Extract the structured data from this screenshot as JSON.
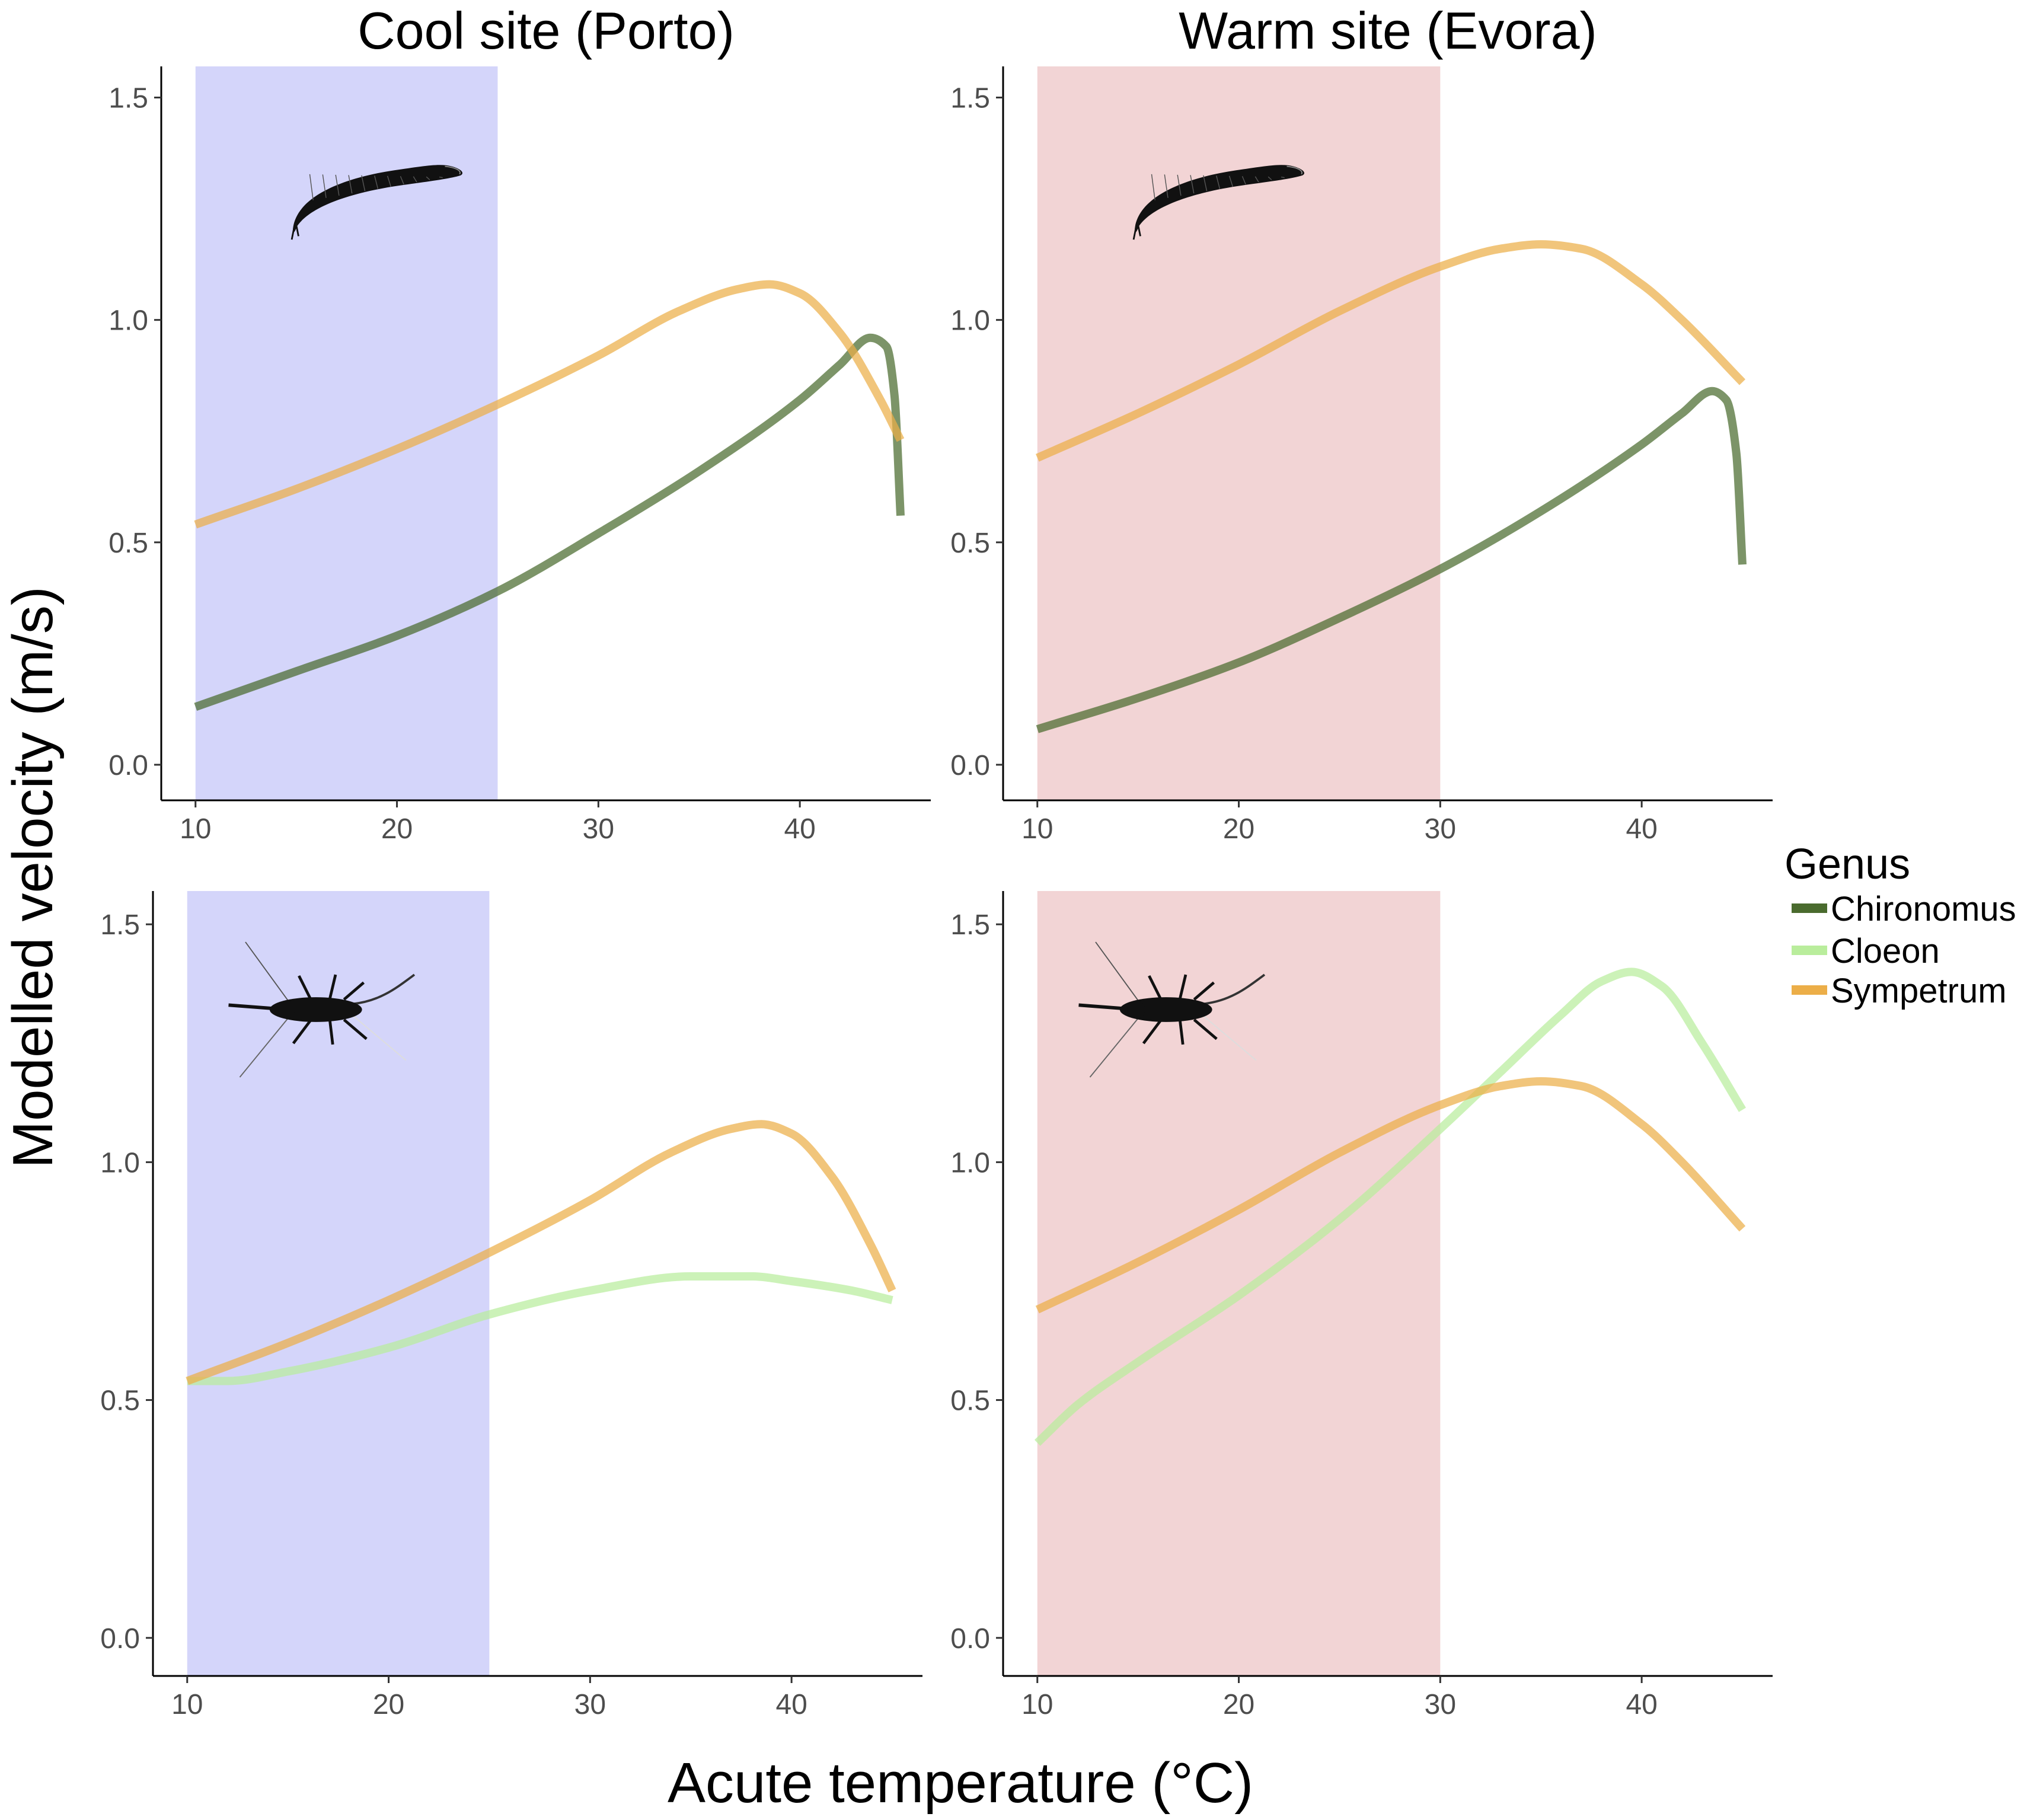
{
  "figure": {
    "xlabel": "Acute temperature (°C)",
    "ylabel": "Modelled velocity (m/s)",
    "legend": {
      "title": "Genus",
      "placement": "right",
      "items": [
        {
          "label": "Chironomus",
          "color": "#4a6b2e"
        },
        {
          "label": "Cloeon",
          "color": "#b9ed9c"
        },
        {
          "label": "Sympetrum",
          "color": "#ecae48"
        }
      ]
    },
    "icons": [
      "chironomus-larva-icon",
      "cloeon-nymph-icon"
    ]
  },
  "chart_data": [
    {
      "type": "line",
      "title": "Cool site (Porto)",
      "xlim": [
        8.3,
        46.5
      ],
      "ylim": [
        -0.08,
        1.57
      ],
      "xticks": [
        "10",
        "20",
        "30",
        "40"
      ],
      "yticks": [
        "0.0",
        "0.5",
        "1.0",
        "1.5"
      ],
      "shaded_range": {
        "x": [
          10,
          25
        ],
        "color": "#d4d5fa"
      },
      "series": [
        {
          "name": "Chironomus",
          "color": "#4a6b2e",
          "x": [
            10,
            15,
            20,
            25,
            30,
            35,
            40,
            42,
            43.5,
            44.3,
            44.7,
            45
          ],
          "y": [
            0.13,
            0.21,
            0.29,
            0.39,
            0.52,
            0.66,
            0.82,
            0.9,
            0.96,
            0.94,
            0.83,
            0.56
          ]
        },
        {
          "name": "Sympetrum",
          "color": "#ecae48",
          "x": [
            10,
            15,
            20,
            25,
            30,
            34,
            37,
            38.5,
            40,
            42,
            44,
            45
          ],
          "y": [
            0.54,
            0.62,
            0.71,
            0.81,
            0.92,
            1.02,
            1.07,
            1.08,
            1.06,
            0.97,
            0.82,
            0.73
          ]
        }
      ]
    },
    {
      "type": "line",
      "title": "Warm site (Evora)",
      "xlim": [
        8.3,
        46.5
      ],
      "ylim": [
        -0.08,
        1.57
      ],
      "xticks": [
        "10",
        "20",
        "30",
        "40"
      ],
      "yticks": [
        "0.0",
        "0.5",
        "1.0",
        "1.5"
      ],
      "shaded_range": {
        "x": [
          10,
          30
        ],
        "color": "#f2d4d5"
      },
      "series": [
        {
          "name": "Chironomus",
          "color": "#4a6b2e",
          "x": [
            10,
            15,
            20,
            25,
            30,
            35,
            40,
            42,
            43.5,
            44.2,
            44.7,
            45
          ],
          "y": [
            0.08,
            0.15,
            0.23,
            0.33,
            0.44,
            0.57,
            0.72,
            0.79,
            0.84,
            0.82,
            0.7,
            0.45
          ]
        },
        {
          "name": "Sympetrum",
          "color": "#ecae48",
          "x": [
            10,
            15,
            20,
            25,
            30,
            33,
            35,
            37,
            40,
            42,
            45
          ],
          "y": [
            0.69,
            0.79,
            0.9,
            1.02,
            1.12,
            1.16,
            1.17,
            1.16,
            1.08,
            1.0,
            0.86
          ]
        }
      ]
    },
    {
      "type": "line",
      "title": "",
      "xlim": [
        8.3,
        46.5
      ],
      "ylim": [
        -0.08,
        1.57
      ],
      "xticks": [
        "10",
        "20",
        "30",
        "40"
      ],
      "yticks": [
        "0.0",
        "0.5",
        "1.0",
        "1.5"
      ],
      "shaded_range": {
        "x": [
          10,
          25
        ],
        "color": "#d4d5fa"
      },
      "series": [
        {
          "name": "Cloeon",
          "color": "#b9ed9c",
          "x": [
            10,
            12,
            15,
            20,
            25,
            30,
            35,
            38,
            40,
            43,
            45
          ],
          "y": [
            0.54,
            0.54,
            0.56,
            0.61,
            0.68,
            0.73,
            0.76,
            0.76,
            0.75,
            0.73,
            0.71
          ]
        },
        {
          "name": "Sympetrum",
          "color": "#ecae48",
          "x": [
            10,
            15,
            20,
            25,
            30,
            34,
            37,
            38.5,
            40,
            42,
            44,
            45
          ],
          "y": [
            0.54,
            0.62,
            0.71,
            0.81,
            0.92,
            1.02,
            1.07,
            1.08,
            1.06,
            0.97,
            0.82,
            0.73
          ]
        }
      ]
    },
    {
      "type": "line",
      "title": "",
      "xlim": [
        8.3,
        46.5
      ],
      "ylim": [
        -0.08,
        1.57
      ],
      "xticks": [
        "10",
        "20",
        "30",
        "40"
      ],
      "yticks": [
        "0.0",
        "0.5",
        "1.0",
        "1.5"
      ],
      "shaded_range": {
        "x": [
          10,
          30
        ],
        "color": "#f2d4d5"
      },
      "series": [
        {
          "name": "Cloeon",
          "color": "#b9ed9c",
          "x": [
            10,
            12,
            15,
            20,
            25,
            30,
            33,
            36,
            38,
            39.5,
            41,
            43,
            45
          ],
          "y": [
            0.41,
            0.49,
            0.58,
            0.72,
            0.88,
            1.07,
            1.19,
            1.31,
            1.38,
            1.4,
            1.37,
            1.25,
            1.11
          ]
        },
        {
          "name": "Sympetrum",
          "color": "#ecae48",
          "x": [
            10,
            15,
            20,
            25,
            30,
            33,
            35,
            37,
            40,
            42,
            45
          ],
          "y": [
            0.69,
            0.79,
            0.9,
            1.02,
            1.12,
            1.16,
            1.17,
            1.16,
            1.08,
            1.0,
            0.86
          ]
        }
      ]
    }
  ]
}
